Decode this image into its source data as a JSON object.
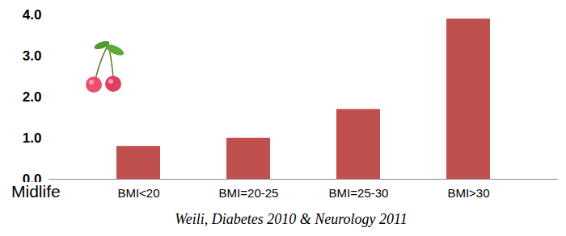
{
  "chart_data": {
    "type": "bar",
    "categories": [
      "BMI<20",
      "BMI=20-25",
      "BMI=25-30",
      "BMI>30"
    ],
    "values": [
      0.8,
      1.0,
      1.7,
      3.9
    ],
    "color": "#c0504d",
    "ylim": [
      0,
      4
    ],
    "yticks": [
      0,
      1,
      2,
      3,
      4
    ],
    "grid": false,
    "annotation": "Midlife",
    "caption": "Weili, Diabetes 2010 & Neurology 2011"
  }
}
